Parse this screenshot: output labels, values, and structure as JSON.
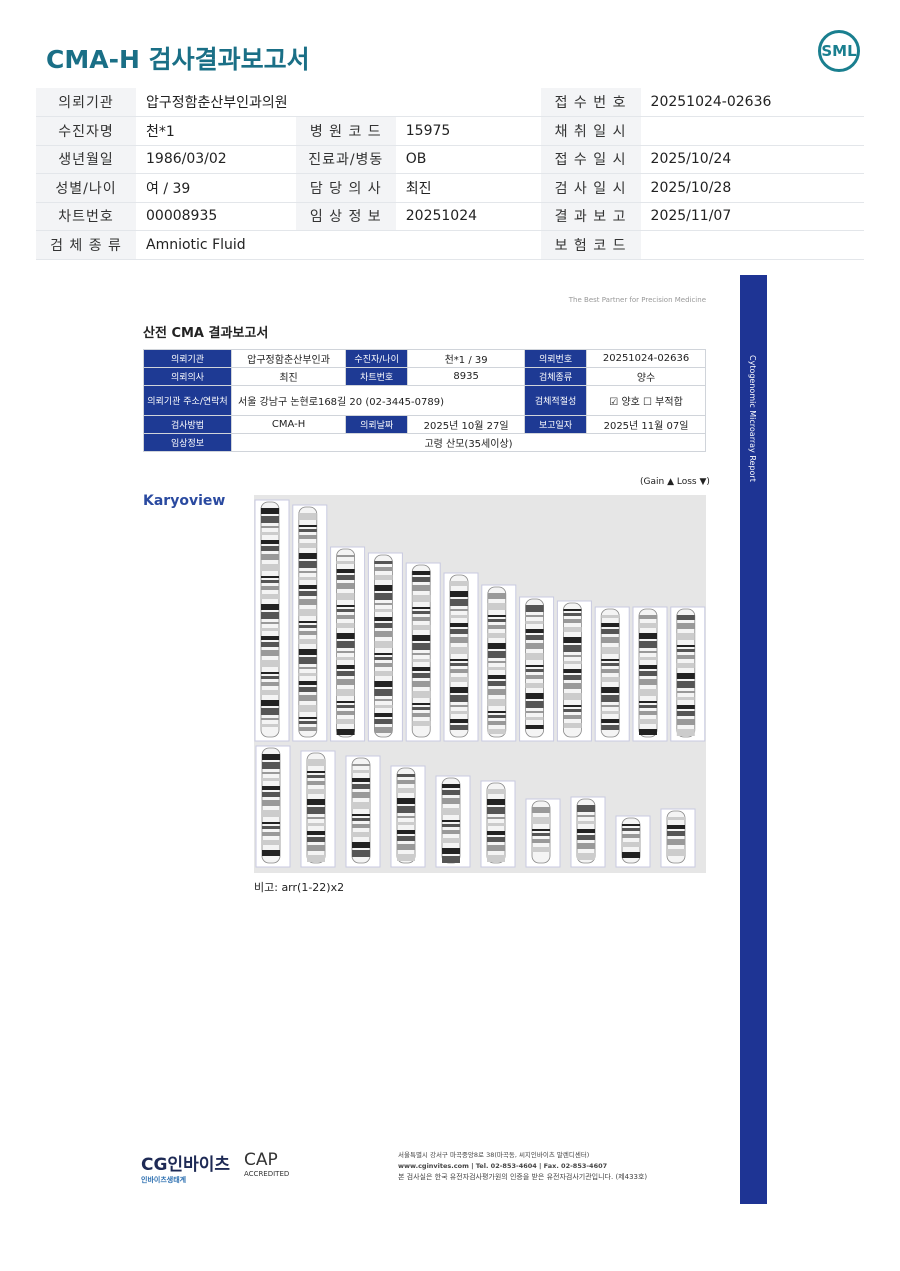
{
  "header": {
    "title": "CMA-H 검사결과보고서",
    "logo": "SML"
  },
  "info": [
    [
      [
        "의뢰기관",
        "압구정함춘산부인과의원"
      ],
      null,
      [
        "접 수 번 호",
        "20251024-02636"
      ]
    ],
    [
      [
        "수진자명",
        "천*1"
      ],
      [
        "병 원 코 드",
        "15975"
      ],
      [
        "채 취 일 시",
        ""
      ]
    ],
    [
      [
        "생년월일",
        "1986/03/02"
      ],
      [
        "진료과/병동",
        "OB"
      ],
      [
        "접 수 일 시",
        "2025/10/24"
      ]
    ],
    [
      [
        "성별/나이",
        "여 / 39"
      ],
      [
        "담 당 의 사",
        "최진"
      ],
      [
        "검 사 일 시",
        "2025/10/28"
      ]
    ],
    [
      [
        "차트번호",
        "00008935"
      ],
      [
        "임 상 정 보",
        "20251024"
      ],
      [
        "결 과 보 고",
        "2025/11/07"
      ]
    ],
    [
      [
        "검 체 종 류",
        "Amniotic Fluid"
      ],
      null,
      [
        "보 험 코 드",
        ""
      ]
    ]
  ],
  "report": {
    "tagline": "The Best Partner for Precision Medicine",
    "title": "산전 CMA 결과보고서",
    "rows": {
      "r1": [
        "의뢰기관",
        "압구정함춘산부인과",
        "수진자/나이",
        "천*1 / 39",
        "의뢰번호",
        "20251024-02636"
      ],
      "r2": [
        "의뢰의사",
        "최진",
        "차트번호",
        "8935",
        "검체종류",
        "양수"
      ],
      "r3": [
        "의뢰기관 주소/연락처",
        "서울 강남구 논현로168길 20 (02-3445-0789)",
        "검체적절성",
        "☑ 양호    ☐ 부적합"
      ],
      "r4": [
        "검사방법",
        "CMA-H",
        "의뢰날짜",
        "2025년 10월 27일",
        "보고일자",
        "2025년 11월 07일"
      ],
      "r5": [
        "임상정보",
        "고령 산모(35세이상)"
      ]
    },
    "legend": "(Gain ▲ Loss ▼)",
    "gain_color": "#1e5fb0",
    "loss_color": "#d0202a",
    "karyoview": "Karyoview",
    "note": "비고: arr(1-22)x2",
    "side_label": "Cytogenomic Microarray Report"
  },
  "footer": {
    "brand": "CG인바이츠",
    "brand_sub": "인바이츠생태계",
    "cap": "CAP",
    "cap_sub": "ACCREDITED",
    "address": "서울특별시 강서구 마곡중앙8로 38(마곡동, 씨지인바이츠 말렌디센터)",
    "contact": "www.cginvites.com | Tel. 02-853-4604 | Fax. 02-853-4607",
    "cert": "본 검사실은 한국 유전자검사평가원의 인증을 받은 유전자검사기관입니다. (제433호)"
  }
}
